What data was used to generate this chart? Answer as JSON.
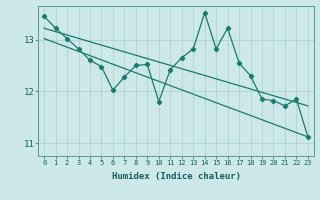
{
  "xlabel": "Humidex (Indice chaleur)",
  "bg_color": "#cce8e8",
  "line_color": "#1a7a6e",
  "grid_color": "#aacfcf",
  "xlim": [
    -0.5,
    23.5
  ],
  "ylim": [
    10.75,
    13.65
  ],
  "yticks": [
    11,
    12,
    13
  ],
  "xticks": [
    0,
    1,
    2,
    3,
    4,
    5,
    6,
    7,
    8,
    9,
    10,
    11,
    12,
    13,
    14,
    15,
    16,
    17,
    18,
    19,
    20,
    21,
    22,
    23
  ],
  "main_line": {
    "x": [
      0,
      1,
      2,
      3,
      4,
      5,
      6,
      7,
      8,
      9,
      10,
      11,
      12,
      13,
      14,
      15,
      16,
      17,
      18,
      19,
      20,
      21,
      22,
      23
    ],
    "y": [
      13.45,
      13.22,
      13.02,
      12.82,
      12.6,
      12.48,
      12.02,
      12.28,
      12.5,
      12.52,
      11.8,
      12.42,
      12.65,
      12.82,
      13.52,
      12.82,
      13.22,
      12.55,
      12.3,
      11.85,
      11.82,
      11.72,
      11.85,
      11.12
    ]
  },
  "trend1": {
    "x": [
      0,
      23
    ],
    "y": [
      13.22,
      11.72
    ]
  },
  "trend2": {
    "x": [
      0,
      23
    ],
    "y": [
      13.02,
      11.12
    ]
  }
}
